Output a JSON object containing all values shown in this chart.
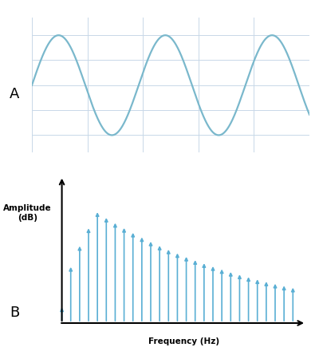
{
  "fig_width": 4.0,
  "fig_height": 4.45,
  "dpi": 100,
  "sine_color": "#7ab8cc",
  "sine_linewidth": 1.6,
  "sine_periods": 2.6,
  "sine_bg_color": "#ffffff",
  "grid_color": "#c8d8e8",
  "stem_color": "#5aafd4",
  "stem_linewidth": 1.2,
  "label_A": "A",
  "label_B": "B",
  "xlabel_B": "Frequency (Hz)",
  "ylabel_B": "Amplitude\n(dB)",
  "label_fontsize": 13,
  "axis_label_fontsize": 7.5,
  "n_stems": 27,
  "stem_peak_index": 4,
  "stem_peak_amplitude": 1.0,
  "stem_decay": 0.05,
  "stem_floor": 0.22
}
